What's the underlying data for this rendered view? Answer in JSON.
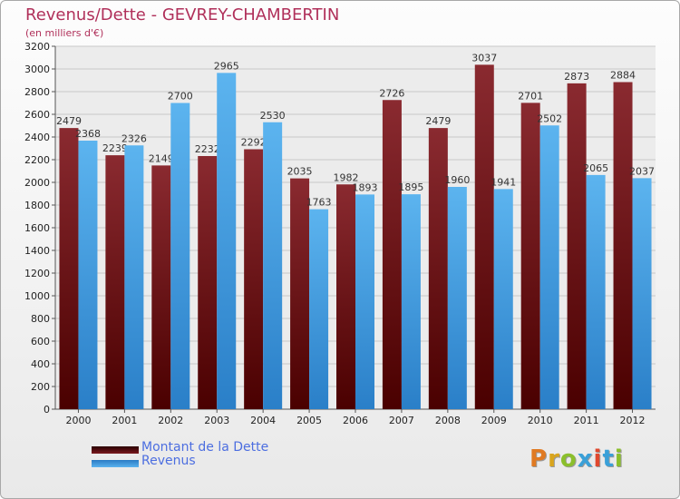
{
  "title": "Revenus/Dette - GEVREY-CHAMBERTIN",
  "subtitle": "(en milliers d'€)",
  "logo": "Proxiti",
  "colors": {
    "dette": "#7a1a1f",
    "revenus": "#4aa3e3",
    "title": "#b0305a"
  },
  "chart_data": {
    "type": "bar",
    "categories": [
      "2000",
      "2001",
      "2002",
      "2003",
      "2004",
      "2005",
      "2006",
      "2007",
      "2008",
      "2009",
      "2010",
      "2011",
      "2012"
    ],
    "series": [
      {
        "name": "Montant de la Dette",
        "values": [
          2479,
          2239,
          2149,
          2232,
          2292,
          2035,
          1982,
          2726,
          2479,
          3037,
          2701,
          2873,
          2884
        ]
      },
      {
        "name": "Revenus",
        "values": [
          2368,
          2326,
          2700,
          2965,
          2530,
          1763,
          1893,
          1895,
          1960,
          1941,
          2502,
          2065,
          2037
        ]
      }
    ],
    "ylim": [
      0,
      3200
    ],
    "yticks": [
      0,
      200,
      400,
      600,
      800,
      1000,
      1200,
      1400,
      1600,
      1800,
      2000,
      2200,
      2400,
      2600,
      2800,
      3000,
      3200
    ],
    "grid": true,
    "legend": "bottom-left"
  }
}
